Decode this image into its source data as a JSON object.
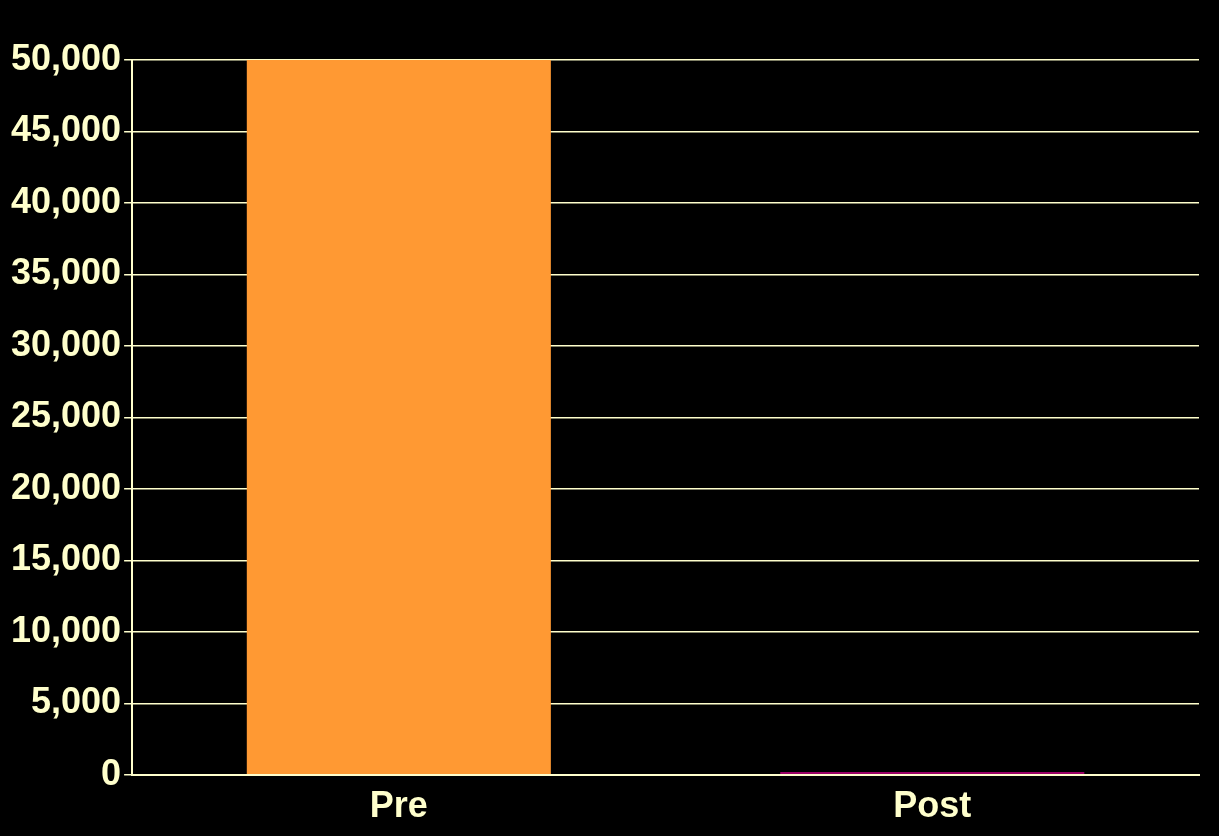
{
  "chart_data": {
    "type": "bar",
    "categories": [
      "Pre",
      "Post"
    ],
    "series": [
      {
        "colors": [
          "#ff9933",
          "#990066"
        ],
        "values": [
          50000,
          200
        ]
      }
    ],
    "ylim": [
      0,
      50000
    ],
    "yticks": [
      {
        "value": 0,
        "label": "0"
      },
      {
        "value": 5000,
        "label": "5,000"
      },
      {
        "value": 10000,
        "label": "10,000"
      },
      {
        "value": 15000,
        "label": "15,000"
      },
      {
        "value": 20000,
        "label": "20,000"
      },
      {
        "value": 25000,
        "label": "25,000"
      },
      {
        "value": 30000,
        "label": "30,000"
      },
      {
        "value": 35000,
        "label": "35,000"
      },
      {
        "value": 40000,
        "label": "40,000"
      },
      {
        "value": 45000,
        "label": "45,000"
      },
      {
        "value": 50000,
        "label": "50,000"
      }
    ],
    "grid": "y"
  }
}
